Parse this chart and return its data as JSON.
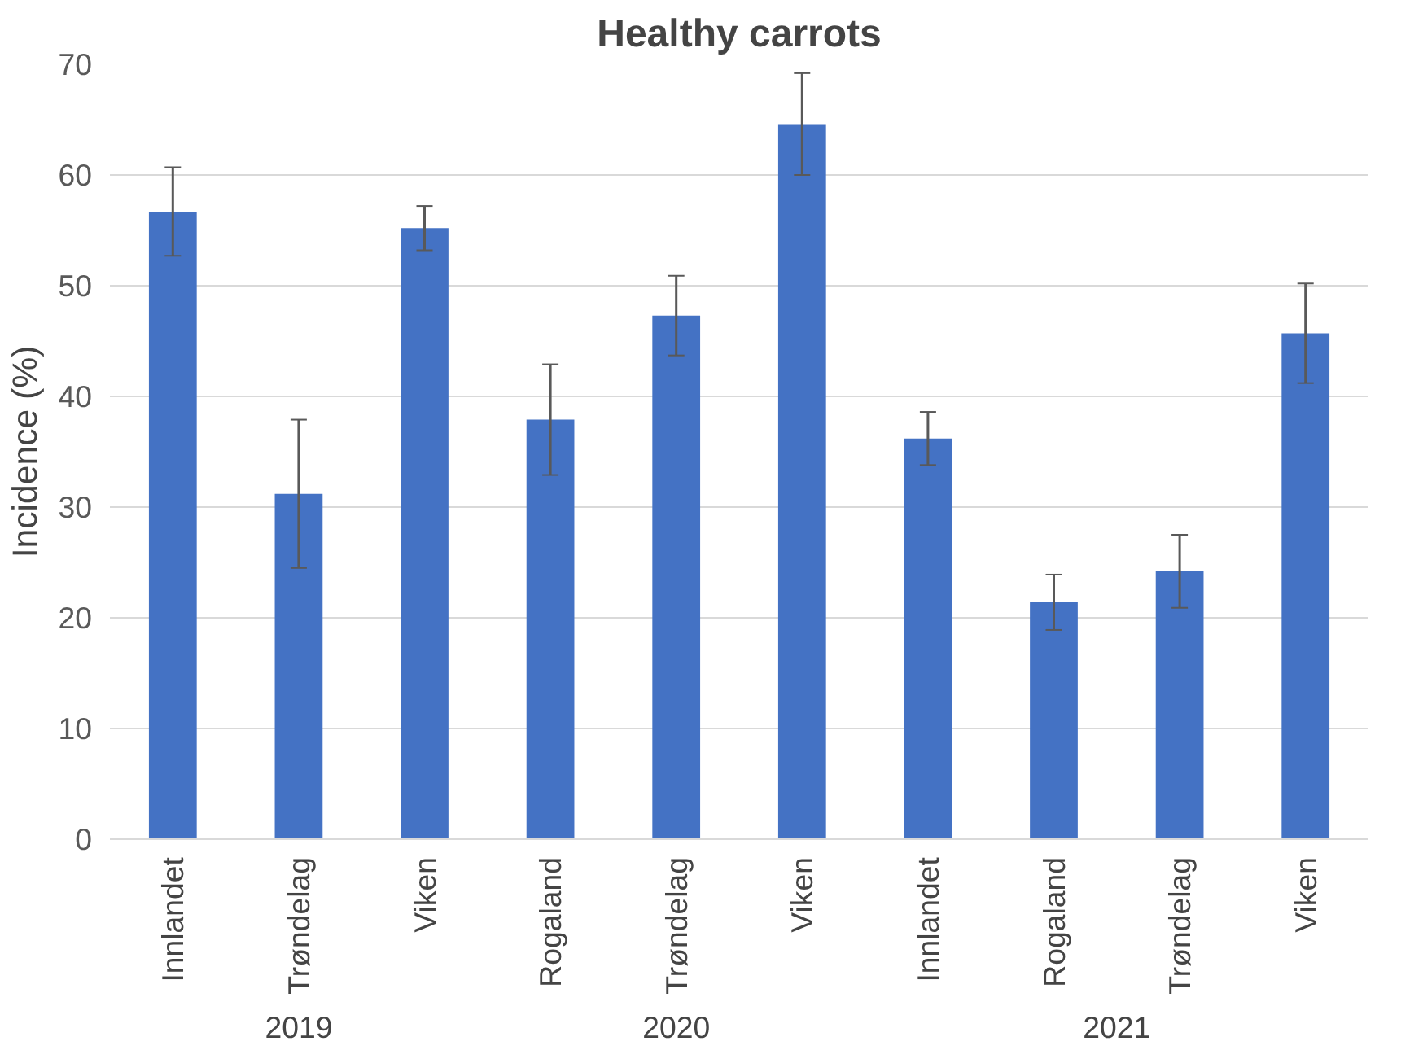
{
  "chart_data": {
    "type": "bar",
    "title": "Healthy carrots",
    "ylabel": "Incidence (%)",
    "categories": [
      "Innlandet",
      "Trøndelag",
      "Viken",
      "Rogaland",
      "Trøndelag",
      "Viken",
      "Innlandet",
      "Rogaland",
      "Trøndelag",
      "Viken"
    ],
    "values": [
      56.7,
      31.2,
      55.2,
      37.9,
      47.3,
      64.6,
      36.2,
      21.4,
      24.2,
      45.7
    ],
    "errors": [
      4,
      6.7,
      2,
      5,
      3.6,
      4.6,
      2.4,
      2.5,
      3.3,
      4.5
    ],
    "color": "#4472c4",
    "ylim": [
      0,
      70
    ],
    "yticks": [
      0,
      10,
      20,
      30,
      40,
      50,
      60,
      70
    ],
    "grid": "y",
    "annotations": [
      "2019",
      "2020",
      "2021"
    ]
  }
}
